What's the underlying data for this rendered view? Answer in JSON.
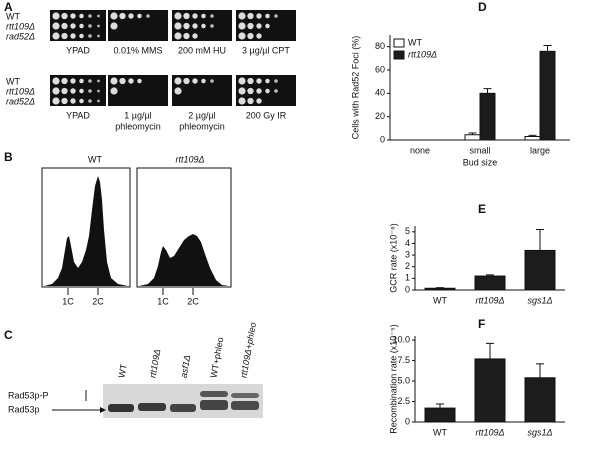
{
  "panel_labels": [
    "A",
    "B",
    "C",
    "D",
    "E",
    "F"
  ],
  "spot_assay": {
    "strains": [
      "WT",
      "rtt109Δ",
      "rad52Δ"
    ],
    "rows": [
      [
        [
          "YPAD"
        ],
        [
          "0.01% MMS"
        ],
        [
          "200 mM HU"
        ],
        [
          "3 µg/µl CPT"
        ]
      ],
      [
        [
          "YPAD"
        ],
        [
          "1 µg/µl",
          "phleomycin"
        ],
        [
          "2 µg/µl",
          "phleomycin"
        ],
        [
          "200 Gy IR"
        ]
      ]
    ]
  },
  "flow_cytometry": {
    "samples": [
      "WT",
      "rtt109Δ"
    ],
    "peaks": [
      "1C",
      "2C"
    ]
  },
  "western": {
    "lanes": [
      "WT",
      "rtt109Δ",
      "asf1Δ",
      "WT+phleo",
      "rtt109Δ+phleo"
    ],
    "bands": [
      "Rad53p-P",
      "Rad53p"
    ]
  },
  "chart_data": [
    {
      "type": "bar",
      "categories": [
        "none",
        "small",
        "large"
      ],
      "series": [
        {
          "name": "WT",
          "color": "#ffffff",
          "values": [
            0,
            4.5,
            3
          ],
          "errors": [
            0,
            1.5,
            1
          ]
        },
        {
          "name": "rtt109Δ",
          "color": "#1c1c1c",
          "values": [
            0,
            40,
            76
          ],
          "errors": [
            0,
            4,
            5
          ]
        }
      ],
      "ylim": [
        0,
        90
      ],
      "yticks": [
        0,
        20,
        40,
        60,
        80
      ],
      "ylabel": "Cells with Rad52 Foci (%)",
      "xlabel": "Bud size",
      "legend": "upper left"
    },
    {
      "type": "bar",
      "categories": [
        "WT",
        "rtt109Δ",
        "sgs1Δ"
      ],
      "values": [
        0.15,
        1.2,
        3.4
      ],
      "errors": [
        0.05,
        0.1,
        1.8
      ],
      "color": "#1c1c1c",
      "ylim": [
        0,
        5.5
      ],
      "yticks": [
        0,
        1,
        2,
        3,
        4,
        5
      ],
      "ylabel": "GCR rate (x10⁻⁸)"
    },
    {
      "type": "bar",
      "categories": [
        "WT",
        "rtt109Δ",
        "sgs1Δ"
      ],
      "values": [
        1.7,
        7.7,
        5.4
      ],
      "errors": [
        0.5,
        1.9,
        1.7
      ],
      "color": "#1c1c1c",
      "ylim": [
        0,
        10.5
      ],
      "yticks": [
        0,
        2.5,
        {
          "value": 5,
          "label": "5.0"
        },
        7.5,
        {
          "value": 10,
          "label": "10.0"
        }
      ],
      "ylabel": "Recombination rate (x10⁻⁵)"
    }
  ]
}
